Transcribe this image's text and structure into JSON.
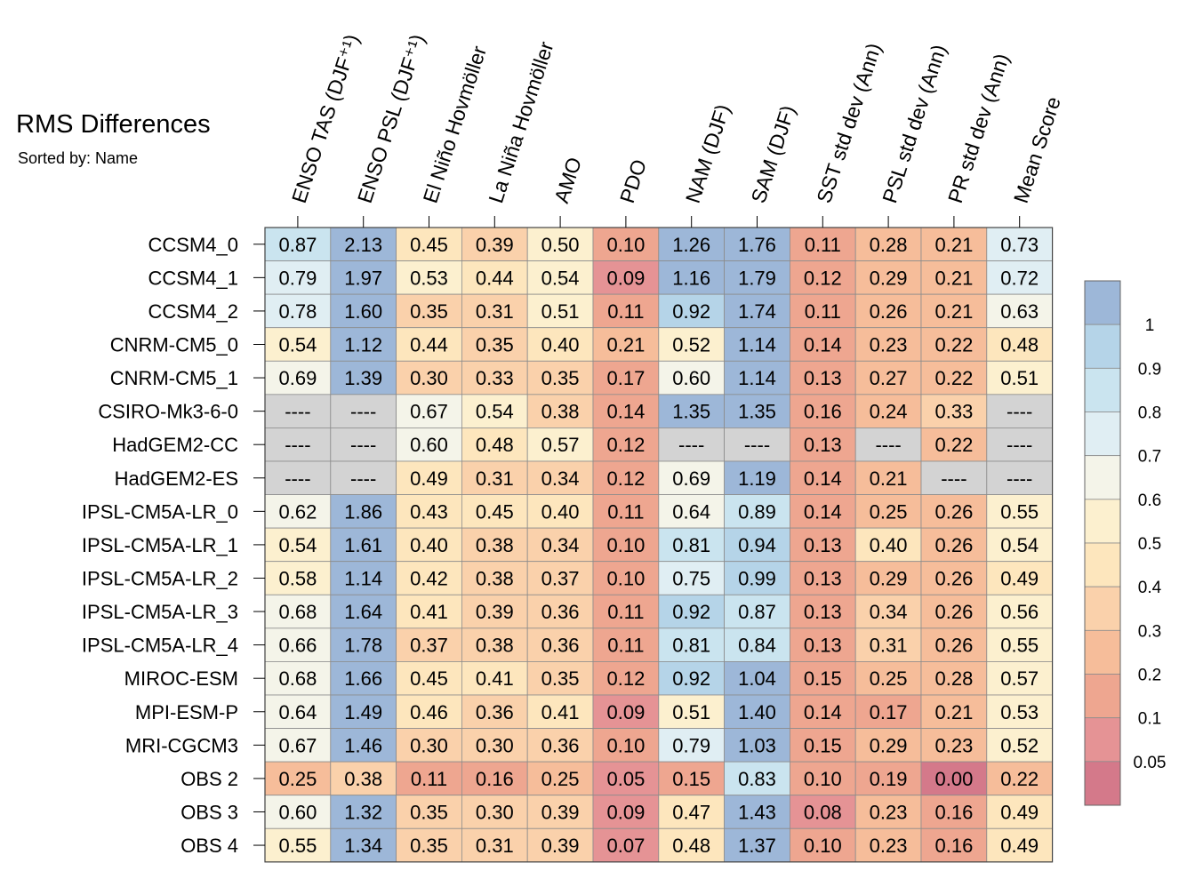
{
  "title": "RMS Differences",
  "subtitle": "Sorted by: Name",
  "chart_data": {
    "type": "heatmap",
    "columns": [
      "ENSO TAS (DJF⁺¹)",
      "ENSO PSL (DJF⁺¹)",
      "El Niño Hovmöller",
      "La Niña Hovmöller",
      "AMO",
      "PDO",
      "NAM (DJF)",
      "SAM (DJF)",
      "SST std dev (Ann)",
      "PSL std dev (Ann)",
      "PR std dev (Ann)",
      "Mean Score"
    ],
    "rows": [
      "CCSM4_0",
      "CCSM4_1",
      "CCSM4_2",
      "CNRM-CM5_0",
      "CNRM-CM5_1",
      "CSIRO-Mk3-6-0",
      "HadGEM2-CC",
      "HadGEM2-ES",
      "IPSL-CM5A-LR_0",
      "IPSL-CM5A-LR_1",
      "IPSL-CM5A-LR_2",
      "IPSL-CM5A-LR_3",
      "IPSL-CM5A-LR_4",
      "MIROC-ESM",
      "MPI-ESM-P",
      "MRI-CGCM3",
      "OBS 2",
      "OBS 3",
      "OBS 4"
    ],
    "missing_label": "----",
    "values": [
      [
        "0.87",
        "2.13",
        "0.45",
        "0.39",
        "0.50",
        "0.10",
        "1.26",
        "1.76",
        "0.11",
        "0.28",
        "0.21",
        "0.73"
      ],
      [
        "0.79",
        "1.97",
        "0.53",
        "0.44",
        "0.54",
        "0.09",
        "1.16",
        "1.79",
        "0.12",
        "0.29",
        "0.21",
        "0.72"
      ],
      [
        "0.78",
        "1.60",
        "0.35",
        "0.31",
        "0.51",
        "0.11",
        "0.92",
        "1.74",
        "0.11",
        "0.26",
        "0.21",
        "0.63"
      ],
      [
        "0.54",
        "1.12",
        "0.44",
        "0.35",
        "0.40",
        "0.21",
        "0.52",
        "1.14",
        "0.14",
        "0.23",
        "0.22",
        "0.48"
      ],
      [
        "0.69",
        "1.39",
        "0.30",
        "0.33",
        "0.35",
        "0.17",
        "0.60",
        "1.14",
        "0.13",
        "0.27",
        "0.22",
        "0.51"
      ],
      [
        null,
        null,
        "0.67",
        "0.54",
        "0.38",
        "0.14",
        "1.35",
        "1.35",
        "0.16",
        "0.24",
        "0.33",
        null
      ],
      [
        null,
        null,
        "0.60",
        "0.48",
        "0.57",
        "0.12",
        null,
        null,
        "0.13",
        null,
        "0.22",
        null
      ],
      [
        null,
        null,
        "0.49",
        "0.31",
        "0.34",
        "0.12",
        "0.69",
        "1.19",
        "0.14",
        "0.21",
        null,
        null
      ],
      [
        "0.62",
        "1.86",
        "0.43",
        "0.45",
        "0.40",
        "0.11",
        "0.64",
        "0.89",
        "0.14",
        "0.25",
        "0.26",
        "0.55"
      ],
      [
        "0.54",
        "1.61",
        "0.40",
        "0.38",
        "0.34",
        "0.10",
        "0.81",
        "0.94",
        "0.13",
        "0.40",
        "0.26",
        "0.54"
      ],
      [
        "0.58",
        "1.14",
        "0.42",
        "0.38",
        "0.37",
        "0.10",
        "0.75",
        "0.99",
        "0.13",
        "0.29",
        "0.26",
        "0.49"
      ],
      [
        "0.68",
        "1.64",
        "0.41",
        "0.39",
        "0.36",
        "0.11",
        "0.92",
        "0.87",
        "0.13",
        "0.34",
        "0.26",
        "0.56"
      ],
      [
        "0.66",
        "1.78",
        "0.37",
        "0.38",
        "0.36",
        "0.11",
        "0.81",
        "0.84",
        "0.13",
        "0.31",
        "0.26",
        "0.55"
      ],
      [
        "0.68",
        "1.66",
        "0.45",
        "0.41",
        "0.35",
        "0.12",
        "0.92",
        "1.04",
        "0.15",
        "0.25",
        "0.28",
        "0.57"
      ],
      [
        "0.64",
        "1.49",
        "0.46",
        "0.36",
        "0.41",
        "0.09",
        "0.51",
        "1.40",
        "0.14",
        "0.17",
        "0.21",
        "0.53"
      ],
      [
        "0.67",
        "1.46",
        "0.30",
        "0.30",
        "0.36",
        "0.10",
        "0.79",
        "1.03",
        "0.15",
        "0.29",
        "0.23",
        "0.52"
      ],
      [
        "0.25",
        "0.38",
        "0.11",
        "0.16",
        "0.25",
        "0.05",
        "0.15",
        "0.83",
        "0.10",
        "0.19",
        "0.00",
        "0.22"
      ],
      [
        "0.60",
        "1.32",
        "0.35",
        "0.30",
        "0.39",
        "0.09",
        "0.47",
        "1.43",
        "0.08",
        "0.23",
        "0.16",
        "0.49"
      ],
      [
        "0.55",
        "1.34",
        "0.35",
        "0.31",
        "0.39",
        "0.07",
        "0.48",
        "1.37",
        "0.10",
        "0.23",
        "0.16",
        "0.49"
      ]
    ],
    "colorbar": {
      "labels": [
        "1",
        "0.9",
        "0.8",
        "0.7",
        "0.6",
        "0.5",
        "0.4",
        "0.3",
        "0.2",
        "0.1",
        "0.05"
      ],
      "thresholds": [
        0.05,
        0.1,
        0.2,
        0.3,
        0.4,
        0.5,
        0.6,
        0.7,
        0.8,
        0.9,
        1.0
      ],
      "colors_low_to_high": [
        "#d4798a",
        "#e59395",
        "#eea690",
        "#f6bd9a",
        "#fad1ab",
        "#fde6bd",
        "#fcf0cf",
        "#f4f4e9",
        "#e0eef3",
        "#cae4ef",
        "#b5d4e8",
        "#9db7d8"
      ],
      "missing_color": "#d3d3d3"
    }
  }
}
